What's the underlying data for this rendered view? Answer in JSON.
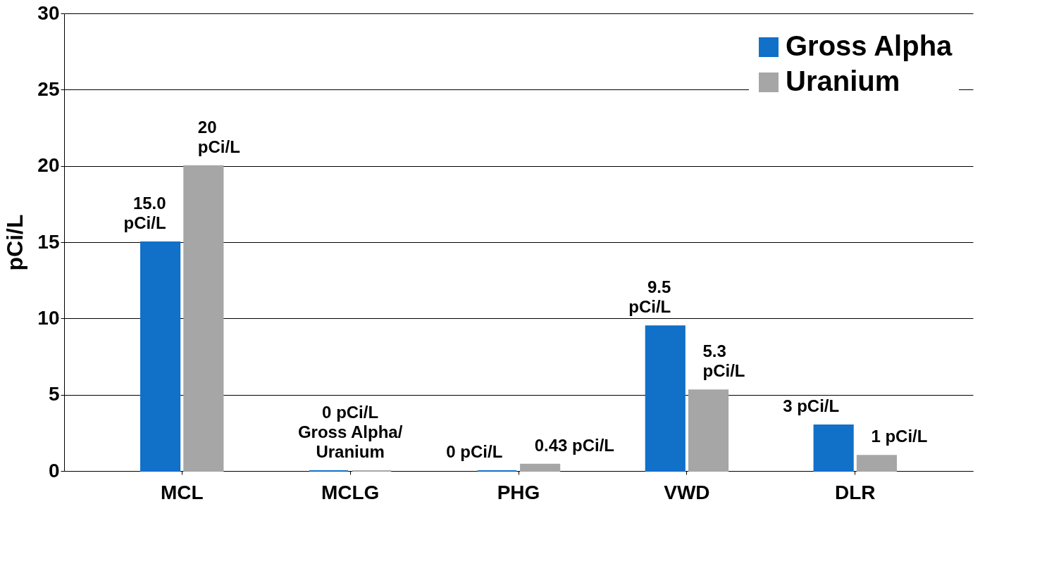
{
  "chart_data": {
    "type": "bar",
    "ylabel": "pCi/L",
    "categories": [
      "MCL",
      "MCLG",
      "PHG",
      "VWD",
      "DLR"
    ],
    "series": [
      {
        "name": "Gross Alpha",
        "color": "#1170c8",
        "values": [
          15.0,
          0,
          0,
          9.5,
          3
        ],
        "value_labels": [
          "15.0\npCi/L",
          "0 pCi/L\nGross Alpha/\nUranium",
          "0 pCi/L",
          "9.5\npCi/L",
          "3 pCi/L"
        ]
      },
      {
        "name": "Uranium",
        "color": "#a6a6a6",
        "values": [
          20,
          0,
          0.43,
          5.3,
          1
        ],
        "value_labels": [
          "20\npCi/L",
          null,
          "0.43 pCi/L",
          "5.3\npCi/L",
          "1 pCi/L"
        ]
      }
    ],
    "ylim": [
      0,
      30
    ],
    "yticks": [
      0,
      5,
      10,
      15,
      20,
      25,
      30
    ],
    "grid": "y",
    "legend": "top right"
  }
}
